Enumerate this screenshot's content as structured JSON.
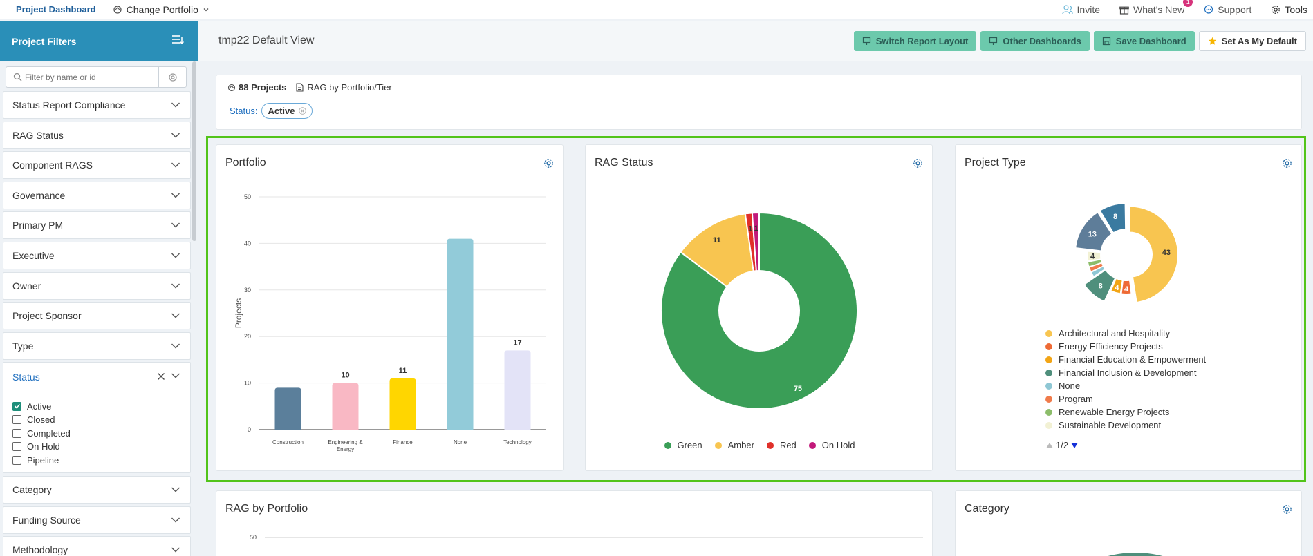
{
  "topbar": {
    "brand": "Project Dashboard",
    "change_portfolio": "Change Portfolio",
    "invite": "Invite",
    "whats_new": "What's New",
    "whats_new_badge": "1",
    "support": "Support",
    "tools": "Tools"
  },
  "sidebar": {
    "title": "Project Filters",
    "search_placeholder": "Filter by name or id",
    "filters_top": [
      "Status Report Compliance",
      "RAG Status",
      "Component RAGS",
      "Governance",
      "Primary PM",
      "Executive",
      "Owner",
      "Project Sponsor",
      "Type"
    ],
    "status": {
      "title": "Status",
      "options": [
        {
          "label": "Active",
          "checked": true
        },
        {
          "label": "Closed",
          "checked": false
        },
        {
          "label": "Completed",
          "checked": false
        },
        {
          "label": "On Hold",
          "checked": false
        },
        {
          "label": "Pipeline",
          "checked": false
        }
      ]
    },
    "filters_bottom": [
      "Category",
      "Funding Source",
      "Methodology"
    ]
  },
  "header": {
    "view_title": "tmp22 Default View",
    "buttons": {
      "switch_layout": "Switch Report Layout",
      "other_dashboards": "Other Dashboards",
      "save_dashboard": "Save Dashboard",
      "set_default": "Set As My Default"
    }
  },
  "summary": {
    "projects": "88 Projects",
    "report": "RAG by Portfolio/Tier",
    "status_label": "Status:",
    "status_value": "Active"
  },
  "colors": {
    "accent": "#2a8fb8",
    "button_green": "#6cc9ac",
    "highlight": "#52c41a"
  },
  "cards": {
    "portfolio": {
      "title": "Portfolio"
    },
    "rag_status": {
      "title": "RAG Status"
    },
    "project_type": {
      "title": "Project Type",
      "pager": "1/2"
    },
    "rag_by_portfolio": {
      "title": "RAG by Portfolio",
      "tick_top": "50"
    },
    "category": {
      "title": "Category"
    }
  },
  "chart_data": [
    {
      "type": "bar",
      "title": "Portfolio",
      "ylabel": "Projects",
      "categories": [
        "Construction",
        "Engineering & Energy",
        "Finance",
        "None",
        "Technology"
      ],
      "values": [
        9,
        10,
        11,
        41,
        17
      ],
      "data_labels": [
        "",
        "10",
        "11",
        "",
        "17"
      ],
      "colors": [
        "#5b7f9b",
        "#f9b8c4",
        "#ffd600",
        "#92cbd9",
        "#e3e3f7"
      ],
      "ylim": [
        0,
        50
      ],
      "yticks": [
        0,
        10,
        20,
        30,
        40,
        50
      ],
      "grid": true
    },
    {
      "type": "pie",
      "title": "RAG Status",
      "labels": [
        "Green",
        "Amber",
        "Red",
        "On Hold"
      ],
      "values": [
        75,
        11,
        1,
        1
      ],
      "colors": [
        "#3a9e57",
        "#f8c550",
        "#e0302a",
        "#c2197a"
      ],
      "legend": "bottom"
    },
    {
      "type": "pie",
      "title": "Project Type",
      "labels": [
        "Architectural and Hospitality",
        "Energy Efficiency Projects",
        "Financial Education & Empowerment",
        "Financial Inclusion & Development",
        "None",
        "Program",
        "Renewable Energy Projects",
        "Sustainable Development"
      ],
      "slices": [
        {
          "value": 43,
          "label": "43",
          "color": "#f8c550"
        },
        {
          "value": 4,
          "label": "4",
          "color": "#ee6a35"
        },
        {
          "value": 4,
          "label": "4",
          "color": "#f2a516"
        },
        {
          "value": 8,
          "label": "8",
          "color": "#4f8f7c"
        },
        {
          "value": 2,
          "label": "",
          "color": "#8fc7d4"
        },
        {
          "value": 2,
          "label": "",
          "color": "#f07b4b"
        },
        {
          "value": 2,
          "label": "",
          "color": "#8cbd6a"
        },
        {
          "value": 4,
          "label": "4",
          "color": "#f2f1d4"
        },
        {
          "value": 13,
          "label": "13",
          "color": "#5e7d99"
        },
        {
          "value": 8,
          "label": "8",
          "color": "#3a7aa0"
        }
      ],
      "legend_colors": [
        "#f8c550",
        "#ee6a35",
        "#f2a516",
        "#4f8f7c",
        "#8fc7d4",
        "#f07b4b",
        "#8cbd6a",
        "#f2f1d4"
      ],
      "legend": "bottom"
    }
  ]
}
